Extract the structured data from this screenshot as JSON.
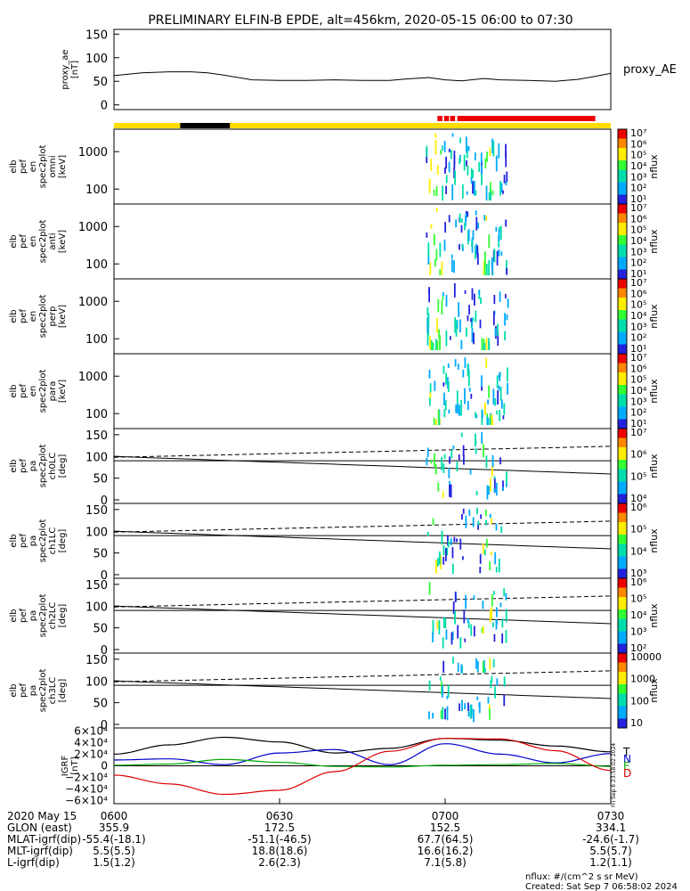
{
  "title": "PRELIMINARY ELFIN-B EPDE, alt=456km, 2020-05-15 06:00 to 07:30",
  "colors": {
    "yellow_bar": "#ffdd00",
    "black_bar": "#000000",
    "red_bar": "#ee0000",
    "field_black": "#000000",
    "field_blue": "#0000cc",
    "field_green": "#00aa00",
    "field_red": "#dd0000"
  },
  "chart_data": [
    {
      "type": "line",
      "name": "proxy_ae",
      "ylabel_lines": [
        "proxy_ae",
        "[nT]"
      ],
      "yticks": [
        0,
        50,
        100,
        150
      ],
      "ylim": [
        -10,
        160
      ],
      "legend": "proxy_AE",
      "series": [
        {
          "name": "proxy_AE",
          "x": [
            0,
            5,
            10,
            14,
            17,
            20,
            25,
            30,
            35,
            40,
            45,
            50,
            53,
            57,
            60,
            63,
            67,
            70,
            75,
            80,
            84,
            87,
            90
          ],
          "values": [
            62,
            68,
            70,
            70,
            68,
            63,
            53,
            52,
            52,
            53,
            52,
            52,
            55,
            58,
            53,
            51,
            56,
            53,
            52,
            50,
            54,
            60,
            67
          ]
        }
      ]
    },
    {
      "type": "status_bar",
      "segments": [
        {
          "color": "yellow",
          "x0": 0,
          "x1": 90
        },
        {
          "color": "black",
          "x0": 12,
          "x1": 21
        },
        {
          "color": "red",
          "x0": 58.6,
          "x1": 59.5
        },
        {
          "color": "red",
          "x0": 59.8,
          "x1": 60.7
        },
        {
          "color": "red",
          "x0": 60.9,
          "x1": 61.8
        },
        {
          "color": "red",
          "x0": 62.2,
          "x1": 87.2
        }
      ]
    },
    {
      "type": "heatmap",
      "name": "omni",
      "ylabel_lines": [
        "elb",
        "pef",
        "en",
        "spec2plot",
        "omni",
        "[keV]"
      ],
      "yticks": [
        100,
        1000
      ],
      "yscale": "log",
      "colorbar": {
        "ticks": [
          "10⁷",
          "10⁶",
          "10⁵",
          "10⁴",
          "10³",
          "10²",
          "10¹"
        ],
        "label": "nflux"
      }
    },
    {
      "type": "heatmap",
      "name": "anti",
      "ylabel_lines": [
        "elb",
        "pef",
        "en",
        "spec2plot",
        "anti",
        "[keV]"
      ],
      "yticks": [
        100,
        1000
      ],
      "yscale": "log",
      "colorbar": {
        "ticks": [
          "10⁷",
          "10⁶",
          "10⁵",
          "10⁴",
          "10³",
          "10²",
          "10¹"
        ],
        "label": "nflux"
      }
    },
    {
      "type": "heatmap",
      "name": "perp",
      "ylabel_lines": [
        "elb",
        "pef",
        "en",
        "spec2plot",
        "perp",
        "[keV]"
      ],
      "yticks": [
        100,
        1000
      ],
      "yscale": "log",
      "colorbar": {
        "ticks": [
          "10⁷",
          "10⁶",
          "10⁵",
          "10⁴",
          "10³",
          "10²",
          "10¹"
        ],
        "label": "nflux"
      }
    },
    {
      "type": "heatmap",
      "name": "para",
      "ylabel_lines": [
        "elb",
        "pef",
        "en",
        "spec2plot",
        "para",
        "[keV]"
      ],
      "yticks": [
        100,
        1000
      ],
      "yscale": "log",
      "colorbar": {
        "ticks": [
          "10⁷",
          "10⁶",
          "10⁵",
          "10⁴",
          "10³",
          "10²",
          "10¹"
        ],
        "label": "nflux"
      }
    },
    {
      "type": "heatmap",
      "name": "ch0LC",
      "ylabel_lines": [
        "elb",
        "pef",
        "pa",
        "spec2plot",
        "ch0LC",
        "[deg]"
      ],
      "yticks": [
        0,
        50,
        100,
        150
      ],
      "colorbar": {
        "ticks": [
          "10⁷",
          "10⁶",
          "10⁵",
          "10⁴"
        ],
        "label": "nflux"
      }
    },
    {
      "type": "heatmap",
      "name": "ch1LC",
      "ylabel_lines": [
        "elb",
        "pef",
        "pa",
        "spec2plot",
        "ch1LC",
        "[deg]"
      ],
      "yticks": [
        0,
        50,
        100,
        150
      ],
      "colorbar": {
        "ticks": [
          "10⁶",
          "10⁵",
          "10⁴",
          "10³"
        ],
        "label": "nflux"
      }
    },
    {
      "type": "heatmap",
      "name": "ch2LC",
      "ylabel_lines": [
        "elb",
        "pef",
        "pa",
        "spec2plot",
        "ch2LC",
        "[deg]"
      ],
      "yticks": [
        0,
        50,
        100,
        150
      ],
      "colorbar": {
        "ticks": [
          "10⁶",
          "10⁵",
          "10⁴",
          "10³",
          "10²"
        ],
        "label": "nflux"
      }
    },
    {
      "type": "heatmap",
      "name": "ch3LC",
      "ylabel_lines": [
        "elb",
        "pef",
        "pa",
        "spec2plot",
        "ch3LC",
        "[deg]"
      ],
      "yticks": [
        0,
        50,
        100,
        150
      ],
      "colorbar": {
        "ticks": [
          "10000",
          "1000",
          "100",
          "10"
        ],
        "label": "nflux"
      }
    },
    {
      "type": "line",
      "name": "IGRF",
      "ylabel_lines": [
        "IGRF",
        "[nT]"
      ],
      "yticks": [
        "6×10⁴",
        "4×10⁴",
        "2×10⁴",
        "0",
        "−2×10⁴",
        "−4×10⁴",
        "−6×10⁴"
      ],
      "ylim": [
        -65000,
        65000
      ],
      "legend": [
        "T",
        "N",
        "E",
        "D"
      ],
      "series": [
        {
          "name": "T",
          "x": [
            0,
            10,
            20,
            30,
            40,
            50,
            60,
            70,
            80,
            90
          ],
          "values": [
            20000,
            36000,
            49000,
            41000,
            22000,
            30000,
            47000,
            44000,
            34000,
            24000
          ]
        },
        {
          "name": "N",
          "x": [
            0,
            10,
            20,
            30,
            40,
            50,
            60,
            70,
            80,
            90
          ],
          "values": [
            10000,
            12000,
            2000,
            22000,
            28000,
            2000,
            38000,
            20000,
            5000,
            21000
          ]
        },
        {
          "name": "E",
          "x": [
            0,
            10,
            20,
            30,
            40,
            50,
            60,
            70,
            80,
            90
          ],
          "values": [
            1000,
            3000,
            11000,
            6000,
            -1000,
            -2000,
            1000,
            2000,
            4000,
            -1000
          ]
        },
        {
          "name": "D",
          "x": [
            0,
            10,
            20,
            30,
            40,
            50,
            60,
            70,
            80,
            90
          ],
          "values": [
            -16000,
            -31000,
            -49000,
            -42000,
            -10000,
            25000,
            47000,
            46000,
            26000,
            -8000
          ]
        }
      ]
    }
  ],
  "x_axis": {
    "labels": [
      {
        "x": 0,
        "time": "0600",
        "glon": "355.9",
        "mlat": "-55.4(-18.1)",
        "mlt": "5.5(5.5)",
        "l": "1.5(1.2)"
      },
      {
        "x": 30,
        "time": "0630",
        "glon": "172.5",
        "mlat": "-51.1(-46.5)",
        "mlt": "18.8(18.6)",
        "l": "2.6(2.3)"
      },
      {
        "x": 60,
        "time": "0700",
        "glon": "152.5",
        "mlat": "67.7(64.5)",
        "mlt": "16.6(16.2)",
        "l": "7.1(5.8)"
      },
      {
        "x": 90,
        "time": "0730",
        "glon": "334.1",
        "mlat": "-24.6(-1.7)",
        "mlt": "5.5(5.7)",
        "l": "1.2(1.1)"
      }
    ],
    "row_names": [
      "2020 May 15",
      "GLON (east)",
      "MLAT-igrf(dip)",
      "MLT-igrf(dip)",
      "L-igrf(dip)"
    ]
  },
  "footer": {
    "units": "nflux: #/(cm^2 s sr MeV)",
    "created": "Created: Sat Sep  7 06:58:02 2024",
    "side_stamp": "Fri Sep  6 23:58:02 2024"
  }
}
